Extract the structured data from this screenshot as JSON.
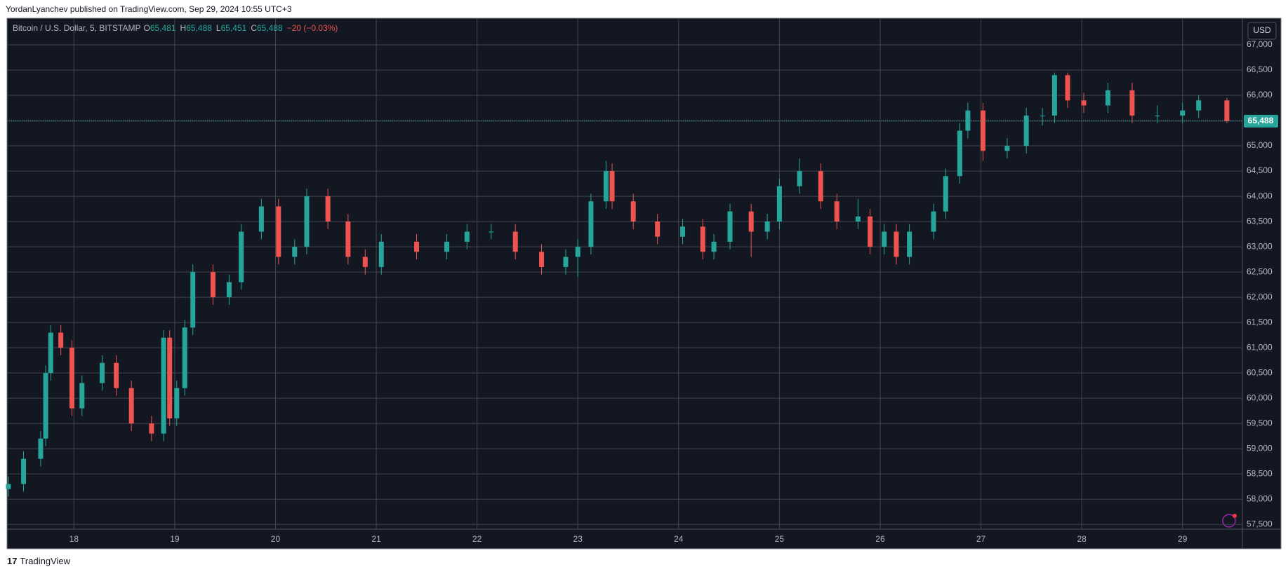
{
  "header": "YordanLyanchev published on TradingView.com, Sep 29, 2024 10:55 UTC+3",
  "footer": "TradingView",
  "chart_data": {
    "type": "candlestick",
    "title": "Bitcoin / U.S. Dollar, 5, BITSTAMP",
    "ohlc_legend": [
      {
        "key": "O",
        "label": "65,481"
      },
      {
        "key": "H",
        "label": "65,488"
      },
      {
        "key": "L",
        "label": "65,451"
      },
      {
        "key": "C",
        "label": "65,488"
      }
    ],
    "change": "−20 (−0.03%)",
    "currency": "USD",
    "last_price": {
      "value": 65488,
      "label": "65,488"
    },
    "up_color": "#26a69a",
    "down_color": "#ef5350",
    "grid": true,
    "xlim": [
      17.35,
      29.58
    ],
    "xticks": [
      18,
      19,
      20,
      21,
      22,
      23,
      24,
      25,
      26,
      27,
      28,
      29
    ],
    "ylim": [
      57420,
      67500
    ],
    "yticks": [
      {
        "value": 57500,
        "label": "57,500"
      },
      {
        "value": 58000,
        "label": "58,000"
      },
      {
        "value": 58500,
        "label": "58,500"
      },
      {
        "value": 59000,
        "label": "59,000"
      },
      {
        "value": 59500,
        "label": "59,500"
      },
      {
        "value": 60000,
        "label": "60,000"
      },
      {
        "value": 60500,
        "label": "60,500"
      },
      {
        "value": 61000,
        "label": "61,000"
      },
      {
        "value": 61500,
        "label": "61,500"
      },
      {
        "value": 62000,
        "label": "62,000"
      },
      {
        "value": 62500,
        "label": "62,500"
      },
      {
        "value": 63000,
        "label": "63,000"
      },
      {
        "value": 63500,
        "label": "63,500"
      },
      {
        "value": 64000,
        "label": "64,000"
      },
      {
        "value": 64500,
        "label": "64,500"
      },
      {
        "value": 65000,
        "label": "65,000"
      },
      {
        "value": 65500,
        "label": "65,500"
      },
      {
        "value": 66000,
        "label": "66,000"
      },
      {
        "value": 66500,
        "label": "66,500"
      },
      {
        "value": 67000,
        "label": "67,000"
      }
    ],
    "x": [
      17.35,
      17.5,
      17.67,
      17.72,
      17.77,
      17.87,
      17.98,
      18.08,
      18.28,
      18.42,
      18.57,
      18.77,
      18.89,
      18.95,
      19.02,
      19.1,
      19.18,
      19.38,
      19.54,
      19.66,
      19.86,
      20.03,
      20.19,
      20.31,
      20.52,
      20.72,
      20.89,
      21.05,
      21.4,
      21.7,
      21.9,
      22.14,
      22.38,
      22.64,
      22.88,
      23.0,
      23.13,
      23.28,
      23.34,
      23.55,
      23.79,
      24.04,
      24.24,
      24.35,
      24.51,
      24.72,
      24.88,
      25.0,
      25.2,
      25.41,
      25.57,
      25.78,
      25.9,
      26.04,
      26.16,
      26.29,
      26.53,
      26.65,
      26.79,
      26.87,
      27.02,
      27.26,
      27.45,
      27.61,
      27.73,
      27.86,
      28.02,
      28.26,
      28.5,
      28.75,
      29.0,
      29.16,
      29.44
    ],
    "open": [
      58200,
      58300,
      58800,
      59200,
      60500,
      61300,
      61000,
      59800,
      60300,
      60700,
      60200,
      59500,
      59300,
      61200,
      59600,
      60200,
      61400,
      62500,
      62000,
      62300,
      63300,
      63800,
      62800,
      63000,
      64000,
      63500,
      62800,
      62600,
      63100,
      62900,
      63100,
      63300,
      63300,
      62900,
      62600,
      62800,
      63000,
      63900,
      64500,
      63900,
      63500,
      63200,
      63400,
      62900,
      63100,
      63700,
      63300,
      63500,
      64200,
      64500,
      63900,
      63500,
      63600,
      63000,
      63300,
      62800,
      63300,
      63700,
      64400,
      65300,
      65700,
      64900,
      65000,
      65600,
      65600,
      66400,
      65900,
      65800,
      66100,
      65600,
      65600,
      65700,
      65900
    ],
    "high": [
      58450,
      58950,
      59350,
      60650,
      61450,
      61450,
      61150,
      60450,
      60850,
      60850,
      60350,
      59650,
      61350,
      61350,
      60350,
      61550,
      62650,
      62650,
      62450,
      63450,
      63950,
      63950,
      63150,
      64150,
      64150,
      63650,
      62950,
      63250,
      63250,
      63250,
      63450,
      63450,
      63450,
      63050,
      62950,
      63150,
      64050,
      64700,
      64650,
      64050,
      63650,
      63550,
      63550,
      63250,
      63850,
      63850,
      63650,
      64350,
      64750,
      64650,
      64050,
      63950,
      63750,
      63450,
      63450,
      63450,
      63850,
      64550,
      65450,
      65850,
      65850,
      65150,
      65750,
      65750,
      66450,
      66450,
      66050,
      66250,
      66250,
      65800,
      65850,
      66000,
      65950
    ],
    "low": [
      58050,
      58150,
      58650,
      59050,
      60350,
      60850,
      59650,
      59650,
      60150,
      60050,
      59350,
      59150,
      59150,
      59450,
      59450,
      60050,
      61250,
      61850,
      61850,
      62150,
      63150,
      62650,
      62650,
      62850,
      63350,
      62650,
      62450,
      62450,
      62750,
      62750,
      62950,
      63150,
      62750,
      62450,
      62450,
      62400,
      62850,
      63750,
      63750,
      63350,
      63050,
      63050,
      62750,
      62750,
      62950,
      62800,
      63150,
      63350,
      64050,
      63750,
      63350,
      63350,
      62850,
      62850,
      62650,
      62650,
      63150,
      63550,
      64250,
      65150,
      64700,
      64750,
      64850,
      65400,
      65450,
      65750,
      65650,
      65650,
      65450,
      65450,
      65450,
      65550,
      65450
    ],
    "close": [
      58300,
      58800,
      59200,
      60500,
      61300,
      61000,
      59800,
      60300,
      60700,
      60200,
      59500,
      59300,
      61200,
      59600,
      60200,
      61400,
      62500,
      62000,
      62300,
      63300,
      63800,
      62800,
      63000,
      64000,
      63500,
      62800,
      62600,
      63100,
      62900,
      63100,
      63300,
      63300,
      62900,
      62600,
      62800,
      63000,
      63900,
      64500,
      63900,
      63500,
      63200,
      63400,
      62900,
      63100,
      63700,
      63300,
      63500,
      64200,
      64500,
      63900,
      63500,
      63600,
      63000,
      63300,
      62800,
      63300,
      63700,
      64400,
      65300,
      65700,
      64900,
      65000,
      65600,
      65600,
      66400,
      65900,
      65800,
      66100,
      65600,
      65600,
      65700,
      65900,
      65488
    ]
  }
}
